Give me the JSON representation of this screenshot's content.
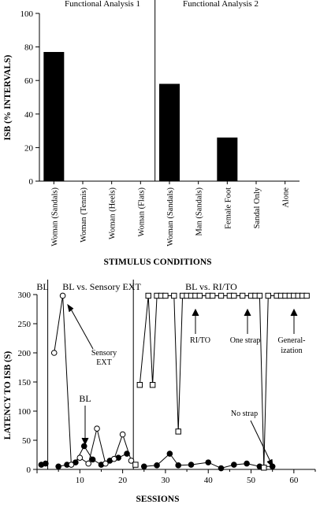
{
  "chart_data": [
    {
      "type": "bar",
      "panel_titles": [
        "Functional Analysis 1",
        "Functional Analysis 2"
      ],
      "ylabel": "ISB (% INTERVALS)",
      "xlabel": "STIMULUS CONDITIONS",
      "ylim": [
        0,
        100
      ],
      "yticks": [
        "0",
        "20",
        "40",
        "60",
        "80",
        "100"
      ],
      "categories": [
        "Woman (Sandals)",
        "Woman (Tennis)",
        "Woman (Heels)",
        "Woman (Flats)",
        "Woman (Sandals)",
        "Man (Sandals)",
        "Female Foot",
        "Sandal Only",
        "Alone"
      ],
      "values": [
        77,
        0,
        0,
        0,
        58,
        0,
        26,
        0,
        0
      ],
      "phase_break_after_index": 3,
      "bar_color": "#000000"
    },
    {
      "type": "line",
      "ylabel": "LATENCY TO ISB (S)",
      "xlabel": "SESSIONS",
      "xlim": [
        0,
        65
      ],
      "ylim": [
        0,
        300
      ],
      "xticks": [
        "10",
        "20",
        "30",
        "40",
        "50",
        "60"
      ],
      "yticks": [
        "0",
        "50",
        "100",
        "150",
        "200",
        "250",
        "300"
      ],
      "phase_labels": [
        "BL",
        "BL vs. Sensory EXT",
        "BL vs. RI/TO"
      ],
      "phase_lines": [
        2.5,
        22.5
      ],
      "annotations": [
        "Sensory EXT",
        "BL",
        "RI/TO",
        "One strap",
        "Generalization",
        "No strap"
      ],
      "annotation_display": [
        "Sensory",
        "EXT",
        "BL",
        "RI/TO",
        "One strap",
        "General-",
        "ization",
        "No strap"
      ],
      "series": [
        {
          "marker": "filled-circle",
          "segments": [
            [
              [
                1,
                8
              ],
              [
                2,
                10
              ]
            ],
            [
              [
                5,
                5
              ],
              [
                7,
                8
              ],
              [
                9,
                12
              ],
              [
                11,
                40
              ],
              [
                13,
                17
              ],
              [
                15,
                8
              ],
              [
                17,
                15
              ],
              [
                19,
                20
              ],
              [
                21,
                27
              ]
            ],
            [
              [
                25,
                5
              ],
              [
                28,
                7
              ],
              [
                31,
                27
              ],
              [
                33,
                7
              ],
              [
                36,
                8
              ],
              [
                40,
                12
              ],
              [
                43,
                2
              ],
              [
                46,
                8
              ],
              [
                49,
                10
              ],
              [
                52,
                5
              ],
              [
                55,
                5
              ]
            ]
          ]
        },
        {
          "marker": "open-circle",
          "segments": [
            [
              [
                4,
                200
              ],
              [
                6,
                298
              ],
              [
                8,
                8
              ],
              [
                10,
                20
              ],
              [
                12,
                10
              ],
              [
                14,
                70
              ],
              [
                16,
                10
              ],
              [
                18,
                18
              ],
              [
                20,
                60
              ],
              [
                22,
                15
              ]
            ]
          ]
        },
        {
          "marker": "open-square",
          "segments": [
            [
              [
                23,
                8
              ]
            ],
            [
              [
                24,
                145
              ],
              [
                26,
                298
              ],
              [
                27,
                145
              ],
              [
                28,
                298
              ],
              [
                29,
                298
              ],
              [
                30,
                298
              ],
              [
                32,
                298
              ],
              [
                33,
                65
              ],
              [
                34,
                298
              ],
              [
                35,
                298
              ],
              [
                36,
                298
              ],
              [
                37,
                298
              ],
              [
                38,
                298
              ],
              [
                40,
                298
              ],
              [
                41,
                298
              ],
              [
                43,
                298
              ],
              [
                45,
                298
              ],
              [
                46,
                298
              ],
              [
                48,
                298
              ],
              [
                50,
                298
              ],
              [
                51,
                298
              ],
              [
                52,
                298
              ],
              [
                53,
                3
              ],
              [
                54,
                298
              ],
              [
                56,
                298
              ],
              [
                57,
                298
              ],
              [
                58,
                298
              ],
              [
                59,
                298
              ],
              [
                60,
                298
              ],
              [
                61,
                298
              ],
              [
                62,
                298
              ],
              [
                63,
                298
              ]
            ]
          ]
        }
      ]
    }
  ]
}
